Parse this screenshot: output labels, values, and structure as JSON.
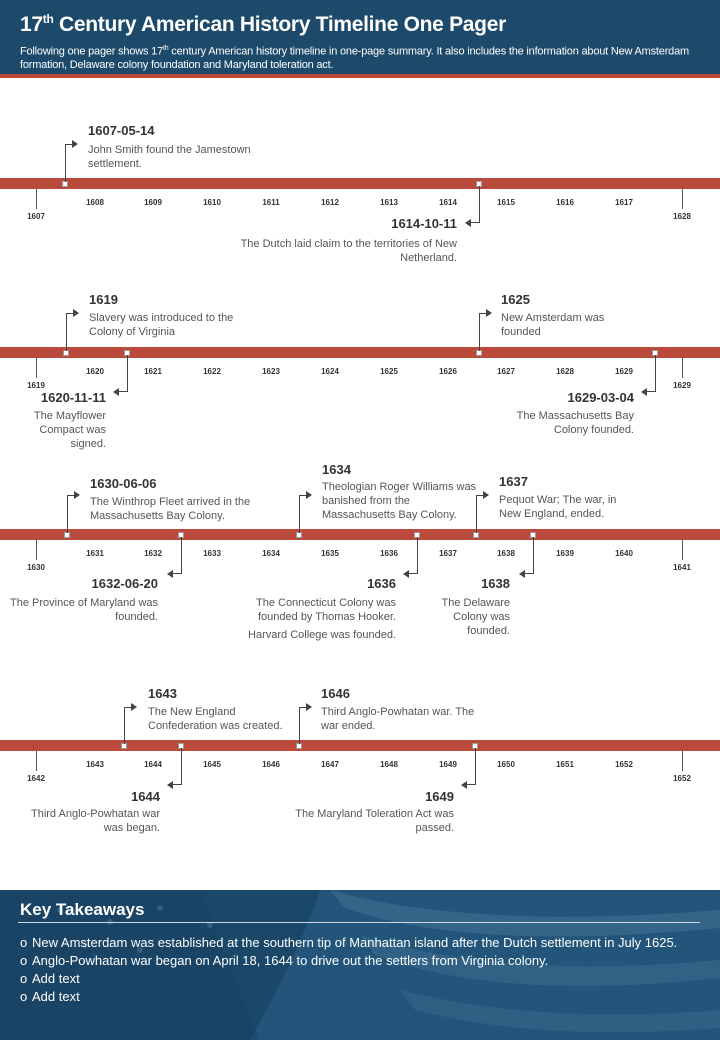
{
  "header": {
    "title_prefix": "17",
    "title_sup": "th",
    "title_rest": " Century American History Timeline One Pager",
    "subtitle_a": "Following one pager shows 17",
    "subtitle_sup": "th",
    "subtitle_b": " century American history timeline in one-page summary. It also includes the information about New Amsterdam formation, Delaware colony foundation and Maryland toleration act."
  },
  "timelines": [
    {
      "ticks": [
        "1607",
        "1608",
        "1609",
        "1610",
        "1611",
        "1612",
        "1613",
        "1614",
        "1615",
        "1616",
        "1617",
        "1628"
      ],
      "events": [
        {
          "date": "1607-05-14",
          "text": "John Smith found the Jamestown settlement."
        },
        {
          "date": "1614-10-11",
          "text": "The Dutch laid claim to the territories of New Netherland."
        }
      ]
    },
    {
      "ticks": [
        "1619",
        "1620",
        "1621",
        "1622",
        "1623",
        "1624",
        "1625",
        "1626",
        "1627",
        "1628",
        "1629",
        "1629"
      ],
      "events": [
        {
          "date": "1619",
          "text": "Slavery was introduced to the Colony of Virginia"
        },
        {
          "date": "1625",
          "text": "New Amsterdam was founded"
        },
        {
          "date": "1620-11-11",
          "text": "The Mayflower Compact was signed."
        },
        {
          "date": "1629-03-04",
          "text": "The Massachusetts Bay Colony founded."
        }
      ]
    },
    {
      "ticks": [
        "1630",
        "1631",
        "1632",
        "1633",
        "1634",
        "1635",
        "1636",
        "1637",
        "1638",
        "1639",
        "1640",
        "1641"
      ],
      "events": [
        {
          "date": "1630-06-06",
          "text": "The Winthrop Fleet arrived in the Massachusetts Bay Colony."
        },
        {
          "date": "1634",
          "text": "Theologian Roger Williams was banished from the Massachusetts Bay Colony."
        },
        {
          "date": "1637",
          "text": "Pequot War; The war, in New England, ended."
        },
        {
          "date": "1632-06-20",
          "text": "The Province of Maryland was founded."
        },
        {
          "date": "1636",
          "text": "The Connecticut Colony was founded by Thomas Hooker.",
          "extra": "Harvard College was founded."
        },
        {
          "date": "1638",
          "text": "The Delaware Colony was founded."
        }
      ]
    },
    {
      "ticks": [
        "1642",
        "1643",
        "1644",
        "1645",
        "1646",
        "1647",
        "1648",
        "1649",
        "1650",
        "1651",
        "1652",
        "1652"
      ],
      "events": [
        {
          "date": "1643",
          "text": "The New England Confederation was created."
        },
        {
          "date": "1646",
          "text": "Third Anglo-Powhatan war. The war ended."
        },
        {
          "date": "1644",
          "text": "Third Anglo-Powhatan war was began."
        },
        {
          "date": "1649",
          "text": "The Maryland Toleration Act was passed."
        }
      ]
    }
  ],
  "takeaways": {
    "title": "Key Takeaways",
    "bullet": "o",
    "items": [
      "New Amsterdam was established at the southern tip of Manhattan island after the Dutch settlement in July 1625.",
      "Anglo-Powhatan war began on April 18, 1644 to drive out the settlers from Virginia colony.",
      "Add text",
      "Add text"
    ]
  }
}
